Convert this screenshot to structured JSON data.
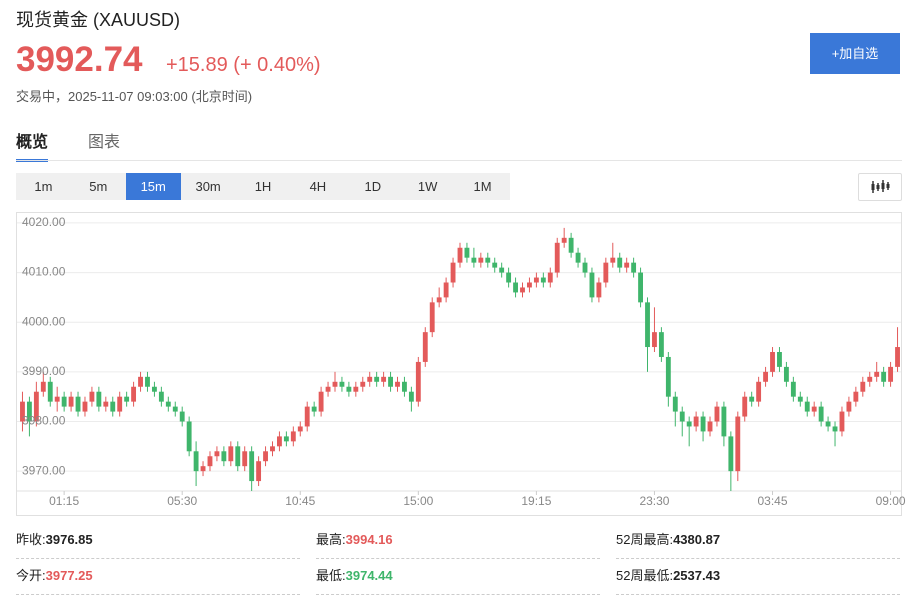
{
  "header": {
    "title": "现货黄金 (XAUUSD)",
    "price": "3992.74",
    "change": "+15.89 (+ 0.40%)",
    "status": "交易中，2025-11-07 09:03:00 (北京时间)",
    "button": "+加自选"
  },
  "tabs": [
    "概览",
    "图表"
  ],
  "intervals": [
    "1m",
    "5m",
    "15m",
    "30m",
    "1H",
    "4H",
    "1D",
    "1W",
    "1M"
  ],
  "active_interval": 2,
  "chart_data": {
    "type": "candlestick",
    "up_color": "#e35a5a",
    "down_color": "#3fb56b",
    "grid": true,
    "ylim": [
      3966,
      4022
    ],
    "yticks": [
      {
        "value": 3970,
        "label": "3970.00"
      },
      {
        "value": 3980,
        "label": "3980.00"
      },
      {
        "value": 3990,
        "label": "3990.00"
      },
      {
        "value": 4000,
        "label": "4000.00"
      },
      {
        "value": 4010,
        "label": "4010.00"
      },
      {
        "value": 4020,
        "label": "4020.00"
      }
    ],
    "xlim": [
      -0.5,
      126.5
    ],
    "xticks": [
      {
        "value": 6,
        "label": "01:15"
      },
      {
        "value": 23,
        "label": "05:30"
      },
      {
        "value": 40,
        "label": "10:45"
      },
      {
        "value": 57,
        "label": "15:00"
      },
      {
        "value": 74,
        "label": "19:15"
      },
      {
        "value": 91,
        "label": "23:30"
      },
      {
        "value": 108,
        "label": "03:45"
      },
      {
        "value": 125,
        "label": "09:00"
      }
    ],
    "ohlc": [
      [
        3980,
        3986,
        3978,
        3984
      ],
      [
        3984,
        3985,
        3977,
        3980
      ],
      [
        3980,
        3988,
        3979,
        3986
      ],
      [
        3986,
        3990,
        3985,
        3988
      ],
      [
        3988,
        3989,
        3983,
        3984
      ],
      [
        3984,
        3987,
        3982,
        3985
      ],
      [
        3985,
        3986,
        3982,
        3983
      ],
      [
        3983,
        3986,
        3982,
        3985
      ],
      [
        3985,
        3986,
        3981,
        3982
      ],
      [
        3982,
        3985,
        3981,
        3984
      ],
      [
        3984,
        3987,
        3983,
        3986
      ],
      [
        3986,
        3987,
        3982,
        3983
      ],
      [
        3983,
        3985,
        3982,
        3984
      ],
      [
        3984,
        3985,
        3981,
        3982
      ],
      [
        3982,
        3986,
        3981,
        3985
      ],
      [
        3985,
        3986,
        3983,
        3984
      ],
      [
        3984,
        3988,
        3983,
        3987
      ],
      [
        3987,
        3990,
        3986,
        3989
      ],
      [
        3989,
        3990,
        3986,
        3987
      ],
      [
        3987,
        3988,
        3985,
        3986
      ],
      [
        3986,
        3987,
        3983,
        3984
      ],
      [
        3984,
        3985,
        3982,
        3983
      ],
      [
        3983,
        3984,
        3981,
        3982
      ],
      [
        3982,
        3983,
        3979,
        3980
      ],
      [
        3980,
        3981,
        3973,
        3974
      ],
      [
        3974,
        3976,
        3967,
        3970
      ],
      [
        3970,
        3972,
        3969,
        3971
      ],
      [
        3971,
        3974,
        3970,
        3973
      ],
      [
        3973,
        3975,
        3972,
        3974
      ],
      [
        3974,
        3975,
        3971,
        3972
      ],
      [
        3972,
        3976,
        3971,
        3975
      ],
      [
        3975,
        3976,
        3970,
        3971
      ],
      [
        3971,
        3975,
        3970,
        3974
      ],
      [
        3974,
        3975,
        3966,
        3968
      ],
      [
        3968,
        3973,
        3967,
        3972
      ],
      [
        3972,
        3975,
        3971,
        3974
      ],
      [
        3974,
        3976,
        3973,
        3975
      ],
      [
        3975,
        3978,
        3974,
        3977
      ],
      [
        3977,
        3978,
        3975,
        3976
      ],
      [
        3976,
        3979,
        3975,
        3978
      ],
      [
        3978,
        3980,
        3977,
        3979
      ],
      [
        3979,
        3984,
        3978,
        3983
      ],
      [
        3983,
        3984,
        3981,
        3982
      ],
      [
        3982,
        3987,
        3981,
        3986
      ],
      [
        3986,
        3988,
        3985,
        3987
      ],
      [
        3987,
        3990,
        3986,
        3988
      ],
      [
        3988,
        3989,
        3986,
        3987
      ],
      [
        3987,
        3988,
        3985,
        3986
      ],
      [
        3986,
        3988,
        3985,
        3987
      ],
      [
        3987,
        3989,
        3986,
        3988
      ],
      [
        3988,
        3990,
        3987,
        3989
      ],
      [
        3989,
        3990,
        3987,
        3988
      ],
      [
        3988,
        3990,
        3987,
        3989
      ],
      [
        3989,
        3990,
        3986,
        3987
      ],
      [
        3987,
        3989,
        3986,
        3988
      ],
      [
        3988,
        3989,
        3985,
        3986
      ],
      [
        3986,
        3987,
        3982,
        3984
      ],
      [
        3984,
        3993,
        3983,
        3992
      ],
      [
        3992,
        3999,
        3991,
        3998
      ],
      [
        3998,
        4005,
        3997,
        4004
      ],
      [
        4004,
        4007,
        4003,
        4005
      ],
      [
        4005,
        4009,
        4004,
        4008
      ],
      [
        4008,
        4013,
        4007,
        4012
      ],
      [
        4012,
        4016,
        4011,
        4015
      ],
      [
        4015,
        4016,
        4012,
        4013
      ],
      [
        4013,
        4015,
        4011,
        4012
      ],
      [
        4012,
        4014,
        4011,
        4013
      ],
      [
        4013,
        4014,
        4011,
        4012
      ],
      [
        4012,
        4013,
        4010,
        4011
      ],
      [
        4011,
        4012,
        4009,
        4010
      ],
      [
        4010,
        4011,
        4007,
        4008
      ],
      [
        4008,
        4009,
        4005,
        4006
      ],
      [
        4006,
        4008,
        4005,
        4007
      ],
      [
        4007,
        4009,
        4006,
        4008
      ],
      [
        4008,
        4010,
        4007,
        4009
      ],
      [
        4009,
        4010,
        4007,
        4008
      ],
      [
        4008,
        4011,
        4007,
        4010
      ],
      [
        4010,
        4017,
        4009,
        4016
      ],
      [
        4016,
        4019,
        4015,
        4017
      ],
      [
        4017,
        4018,
        4013,
        4014
      ],
      [
        4014,
        4015,
        4011,
        4012
      ],
      [
        4012,
        4013,
        4009,
        4010
      ],
      [
        4010,
        4011,
        4004,
        4005
      ],
      [
        4005,
        4009,
        4004,
        4008
      ],
      [
        4008,
        4013,
        4007,
        4012
      ],
      [
        4012,
        4016,
        4011,
        4013
      ],
      [
        4013,
        4014,
        4010,
        4011
      ],
      [
        4011,
        4013,
        4010,
        4012
      ],
      [
        4012,
        4013,
        4009,
        4010
      ],
      [
        4010,
        4011,
        4003,
        4004
      ],
      [
        4004,
        4005,
        3990,
        3995
      ],
      [
        3995,
        4003,
        3994,
        3998
      ],
      [
        3998,
        3999,
        3992,
        3993
      ],
      [
        3993,
        3994,
        3983,
        3985
      ],
      [
        3985,
        3986,
        3979,
        3982
      ],
      [
        3982,
        3983,
        3977,
        3980
      ],
      [
        3980,
        3981,
        3975,
        3979
      ],
      [
        3979,
        3982,
        3978,
        3981
      ],
      [
        3981,
        3982,
        3976,
        3978
      ],
      [
        3978,
        3981,
        3977,
        3980
      ],
      [
        3980,
        3984,
        3979,
        3983
      ],
      [
        3983,
        3984,
        3975,
        3977
      ],
      [
        3977,
        3978,
        3966,
        3970
      ],
      [
        3970,
        3982,
        3968,
        3981
      ],
      [
        3981,
        3986,
        3980,
        3985
      ],
      [
        3985,
        3986,
        3983,
        3984
      ],
      [
        3984,
        3989,
        3983,
        3988
      ],
      [
        3988,
        3991,
        3987,
        3990
      ],
      [
        3990,
        3995,
        3989,
        3994
      ],
      [
        3994,
        3995,
        3990,
        3991
      ],
      [
        3991,
        3992,
        3987,
        3988
      ],
      [
        3988,
        3989,
        3984,
        3985
      ],
      [
        3985,
        3986,
        3983,
        3984
      ],
      [
        3984,
        3985,
        3981,
        3982
      ],
      [
        3982,
        3984,
        3981,
        3983
      ],
      [
        3983,
        3984,
        3979,
        3980
      ],
      [
        3980,
        3981,
        3978,
        3979
      ],
      [
        3979,
        3980,
        3975,
        3978
      ],
      [
        3978,
        3983,
        3977,
        3982
      ],
      [
        3982,
        3985,
        3981,
        3984
      ],
      [
        3984,
        3987,
        3983,
        3986
      ],
      [
        3986,
        3989,
        3985,
        3988
      ],
      [
        3988,
        3990,
        3987,
        3989
      ],
      [
        3989,
        3992,
        3988,
        3990
      ],
      [
        3990,
        3991,
        3987,
        3988
      ],
      [
        3988,
        3992,
        3987,
        3991
      ],
      [
        3991,
        3999,
        3990,
        3995
      ]
    ]
  },
  "stats": [
    {
      "label": "昨收:",
      "value": "3976.85",
      "color": "#222222"
    },
    {
      "label": "最高:",
      "value": "3994.16",
      "color": "#e35a5a"
    },
    {
      "label": "52周最高:",
      "value": "4380.87",
      "color": "#222222"
    },
    {
      "label": "今开:",
      "value": "3977.25",
      "color": "#e35a5a"
    },
    {
      "label": "最低:",
      "value": "3974.44",
      "color": "#3fb56b"
    },
    {
      "label": "52周最低:",
      "value": "2537.43",
      "color": "#222222"
    }
  ]
}
